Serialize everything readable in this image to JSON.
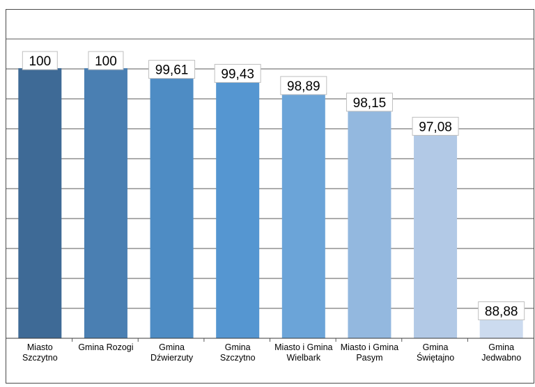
{
  "chart_data": {
    "type": "bar",
    "title": "",
    "xlabel": "",
    "ylabel": "",
    "ylim": [
      88,
      100.1
    ],
    "grid": true,
    "legend": "none",
    "categories": [
      [
        "Miasto",
        "Szczytno"
      ],
      [
        "Gmina Rozogi"
      ],
      [
        "Gmina",
        "Dźwierzuty"
      ],
      [
        "Gmina",
        "Szczytno"
      ],
      [
        "Miasto i Gmina",
        "Wielbark"
      ],
      [
        "Miasto i Gmina",
        "Pasym"
      ],
      [
        "Gmina",
        "Świętajno"
      ],
      [
        "Gmina",
        "Jedwabno"
      ]
    ],
    "values": [
      100,
      100,
      99.61,
      99.43,
      98.89,
      98.15,
      97.08,
      88.88
    ],
    "value_labels": [
      "100",
      "100",
      "99,61",
      "99,43",
      "98,89",
      "98,15",
      "97,08",
      "88,88"
    ],
    "bar_colors": [
      "#3e6a96",
      "#4a7fb2",
      "#4e8cc4",
      "#5596d1",
      "#6ba4d8",
      "#93b8df",
      "#b2c9e6",
      "#ccdbef"
    ]
  }
}
